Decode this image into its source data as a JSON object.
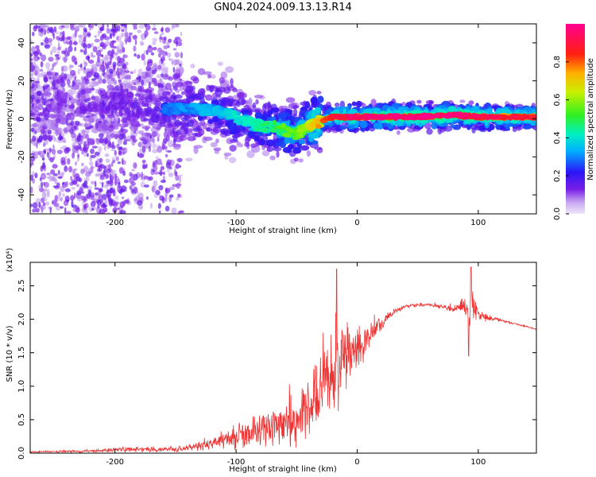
{
  "title": "GN04.2024.009.13.13.R14",
  "colorbar": {
    "label": "Normalized spectral amplitude",
    "range": [
      0,
      1
    ],
    "ticks": [
      0.0,
      0.2,
      0.4,
      0.6,
      0.8
    ],
    "tick_labels": [
      "0.0",
      "0.2",
      "0.4",
      "0.6",
      "0.8"
    ],
    "colormap": "rainbow: lavender-purple-blue-cyan-green-yellow-red-magenta"
  },
  "chart_data": [
    {
      "type": "heatmap",
      "name": "spectrogram",
      "title": "",
      "xlabel": "Height of straight line (km)",
      "ylabel": "Frequency (Hz)",
      "xlim": [
        -270,
        148
      ],
      "ylim": [
        -50,
        50
      ],
      "x_ticks": [
        -200,
        -100,
        0,
        100
      ],
      "y_ticks": [
        -40,
        -20,
        0,
        20,
        40
      ],
      "x_tick_labels": [
        "-200",
        "-100",
        "0",
        "100"
      ],
      "y_tick_labels": [
        "-40",
        "-20",
        "0",
        "20",
        "40"
      ],
      "ridge": {
        "x": [
          -270,
          -220,
          -180,
          -150,
          -120,
          -100,
          -90,
          -80,
          -70,
          -60,
          -50,
          -45,
          -40,
          -30,
          -20,
          -10,
          0,
          20,
          50,
          80,
          100,
          148
        ],
        "freq": [
          8,
          7,
          6,
          5,
          5,
          1,
          -2,
          -4,
          -4,
          -6,
          -8,
          -6,
          -4,
          -1,
          1,
          1,
          1,
          1,
          1,
          2,
          1,
          1
        ],
        "amplitude": [
          0.18,
          0.2,
          0.25,
          0.3,
          0.35,
          0.4,
          0.4,
          0.45,
          0.5,
          0.55,
          0.55,
          0.6,
          0.65,
          0.75,
          0.85,
          0.9,
          0.92,
          0.93,
          0.95,
          0.95,
          0.9,
          0.85
        ]
      }
    },
    {
      "type": "line",
      "name": "snr",
      "title": "",
      "xlabel": "Height of straight line (km)",
      "ylabel": "SNR (10 * v/v)",
      "y_scale_label": "(x10⁴)",
      "xlim": [
        -270,
        148
      ],
      "ylim": [
        0,
        2.85
      ],
      "x_ticks": [
        -200,
        -100,
        0,
        100
      ],
      "y_ticks": [
        0.0,
        0.5,
        1.0,
        1.5,
        2.0,
        2.5
      ],
      "x_tick_labels": [
        "-200",
        "-100",
        "0",
        "100"
      ],
      "y_tick_labels": [
        "0.0",
        "0.5",
        "1.0",
        "1.5",
        "2.0",
        "2.5"
      ],
      "color": "#ee3333",
      "envelope": {
        "x": [
          -270,
          -220,
          -200,
          -180,
          -160,
          -140,
          -120,
          -100,
          -80,
          -60,
          -50,
          -40,
          -30,
          -20,
          -15,
          -10,
          0,
          10,
          20,
          30,
          40,
          60,
          80,
          90,
          93,
          95,
          100,
          120,
          148
        ],
        "base": [
          0.02,
          0.03,
          0.05,
          0.06,
          0.05,
          0.07,
          0.15,
          0.25,
          0.32,
          0.45,
          0.5,
          0.7,
          0.95,
          1.15,
          1.3,
          1.4,
          1.55,
          1.75,
          1.95,
          2.1,
          2.2,
          2.22,
          2.15,
          2.2,
          2.0,
          2.25,
          2.05,
          1.98,
          1.85
        ],
        "noise": [
          0.01,
          0.02,
          0.04,
          0.04,
          0.03,
          0.05,
          0.1,
          0.18,
          0.25,
          0.3,
          0.4,
          0.5,
          0.55,
          0.6,
          0.65,
          0.5,
          0.3,
          0.2,
          0.12,
          0.05,
          0.03,
          0.02,
          0.05,
          0.15,
          0.3,
          0.25,
          0.08,
          0.02,
          0.01
        ]
      },
      "peaks": [
        {
          "x": -17,
          "y": 2.75
        },
        {
          "x": -15,
          "y": 1.0
        },
        {
          "x": 94,
          "y": 2.78
        },
        {
          "x": 92,
          "y": 1.45
        }
      ]
    }
  ]
}
